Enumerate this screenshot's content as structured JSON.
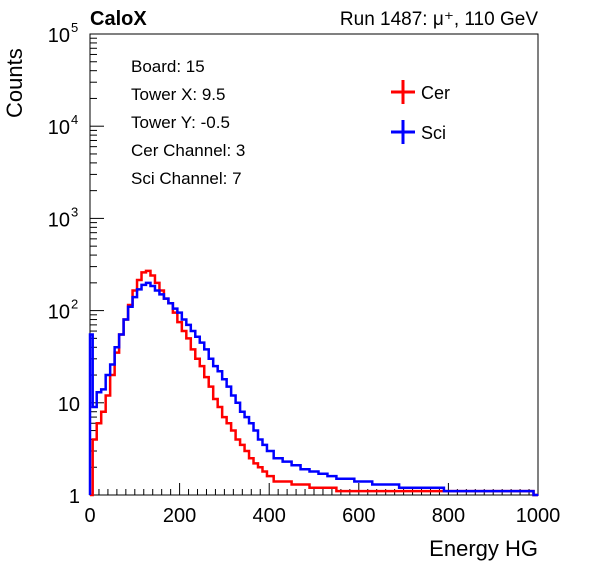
{
  "header": {
    "left": "CaloX",
    "right": "Run 1487:   μ⁺, 110 GeV"
  },
  "info_box": [
    "Board: 15",
    "Tower X: 9.5",
    "Tower Y: -0.5",
    "Cer Channel: 3",
    "Sci Channel: 7"
  ],
  "chart_data": {
    "type": "line",
    "xlabel": "Energy HG",
    "ylabel": "Counts",
    "xlim": [
      0,
      1000
    ],
    "ylim": [
      1,
      100000
    ],
    "yscale": "log",
    "x_ticks": [
      "0",
      "200",
      "400",
      "600",
      "800",
      "1000"
    ],
    "y_ticks": [
      {
        "value": 1,
        "label": "1"
      },
      {
        "value": 10,
        "label": "10"
      },
      {
        "value": 100,
        "label": "10",
        "exp": "2"
      },
      {
        "value": 1000,
        "label": "10",
        "exp": "3"
      },
      {
        "value": 10000,
        "label": "10",
        "exp": "4"
      },
      {
        "value": 100000,
        "label": "10",
        "exp": "5"
      }
    ],
    "grid": false,
    "legend_position": "top-right",
    "series": [
      {
        "name": "Cer",
        "color": "#ff0000",
        "x": [
          2,
          10,
          20,
          30,
          40,
          50,
          60,
          70,
          80,
          90,
          100,
          110,
          120,
          130,
          140,
          150,
          160,
          170,
          180,
          190,
          200,
          210,
          220,
          230,
          240,
          250,
          260,
          270,
          280,
          290,
          300,
          310,
          320,
          330,
          340,
          350,
          360,
          370,
          380,
          390,
          400,
          420,
          440,
          460,
          480,
          500,
          520,
          540,
          560,
          580,
          600,
          620,
          640,
          660,
          680,
          700,
          720,
          740,
          760,
          780,
          800,
          820,
          840,
          860,
          880,
          900,
          920,
          940,
          960,
          980,
          1000
        ],
        "y": [
          1,
          4,
          6,
          8,
          12,
          20,
          35,
          55,
          80,
          115,
          165,
          215,
          260,
          270,
          240,
          200,
          165,
          135,
          120,
          95,
          75,
          60,
          50,
          38,
          30,
          25,
          19,
          15,
          11,
          9,
          7,
          6,
          5,
          4,
          3.5,
          3,
          2.5,
          2.2,
          2,
          1.8,
          1.6,
          1.4,
          1.4,
          1.3,
          1.3,
          1.2,
          1.2,
          1.2,
          1.1,
          1.1,
          1.1,
          1.1,
          1.1,
          1.1,
          1.1,
          1.1,
          1.1,
          1.1,
          1.1,
          1.1,
          1.1,
          1.1,
          1.1,
          1.1,
          1.1,
          1.1,
          1.1,
          1.1,
          1.1,
          1.1,
          1
        ]
      },
      {
        "name": "Sci",
        "color": "#0000ff",
        "x": [
          2,
          10,
          20,
          30,
          40,
          50,
          60,
          70,
          80,
          90,
          100,
          110,
          120,
          130,
          140,
          150,
          160,
          170,
          180,
          190,
          200,
          210,
          220,
          230,
          240,
          250,
          260,
          270,
          280,
          290,
          300,
          310,
          320,
          330,
          340,
          350,
          360,
          370,
          380,
          390,
          400,
          420,
          440,
          460,
          480,
          500,
          520,
          540,
          560,
          580,
          600,
          620,
          640,
          660,
          680,
          700,
          720,
          740,
          760,
          780,
          800,
          820,
          840,
          860,
          880,
          900,
          920,
          940,
          960,
          980,
          1000
        ],
        "y": [
          55,
          9,
          13,
          14,
          20,
          26,
          40,
          55,
          80,
          110,
          140,
          170,
          190,
          200,
          185,
          165,
          150,
          135,
          120,
          105,
          95,
          80,
          70,
          60,
          52,
          45,
          38,
          30,
          25,
          22,
          18,
          15,
          12,
          10,
          8,
          7,
          6,
          5,
          4,
          3.5,
          3,
          2.5,
          2.3,
          2.1,
          1.9,
          1.8,
          1.7,
          1.6,
          1.5,
          1.5,
          1.4,
          1.4,
          1.3,
          1.3,
          1.3,
          1.2,
          1.2,
          1.2,
          1.2,
          1.2,
          1.1,
          1.1,
          1.1,
          1.1,
          1.1,
          1.1,
          1.1,
          1.1,
          1.1,
          1.1,
          1
        ]
      }
    ]
  }
}
